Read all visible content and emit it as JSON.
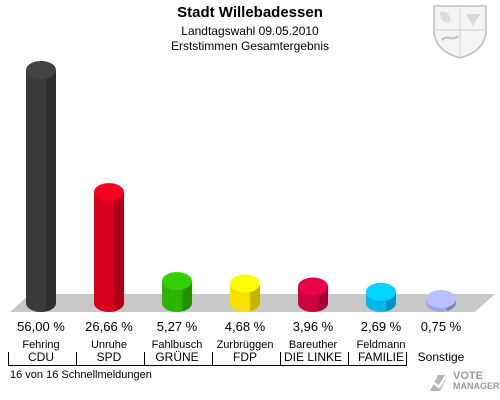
{
  "header": {
    "title": "Stadt Willebadessen",
    "subtitle": "Landtagswahl 09.05.2010",
    "subtitle2": "Erststimmen Gesamtergebnis"
  },
  "footer": {
    "status": "16 von 16 Schnellmeldungen"
  },
  "logo": {
    "text_line1": "VOTE",
    "text_line2": "MANAGER"
  },
  "chart_data": {
    "type": "bar",
    "title": "Stadt Willebadessen",
    "categories": [
      "CDU",
      "SPD",
      "GRÜNE",
      "FDP",
      "DIE LINKE",
      "FAMILIE",
      "Sonstige"
    ],
    "candidates": [
      "Fehring",
      "Unruhe",
      "Fahlbusch",
      "Zurbrüggen",
      "Bareuther",
      "Feldmann",
      ""
    ],
    "values": [
      56.0,
      26.66,
      5.27,
      4.68,
      3.96,
      2.69,
      0.75
    ],
    "value_labels": [
      "56,00 %",
      "26,66 %",
      "5,27 %",
      "4,68 %",
      "3,96 %",
      "2,69 %",
      "0,75 %"
    ],
    "colors": [
      "#3a3a3a",
      "#d8001c",
      "#2db400",
      "#f5e000",
      "#cc0040",
      "#00b8ec",
      "#a0a8e0"
    ],
    "ylim": [
      0,
      56
    ],
    "grid": false,
    "xlabel": "",
    "ylabel": ""
  }
}
